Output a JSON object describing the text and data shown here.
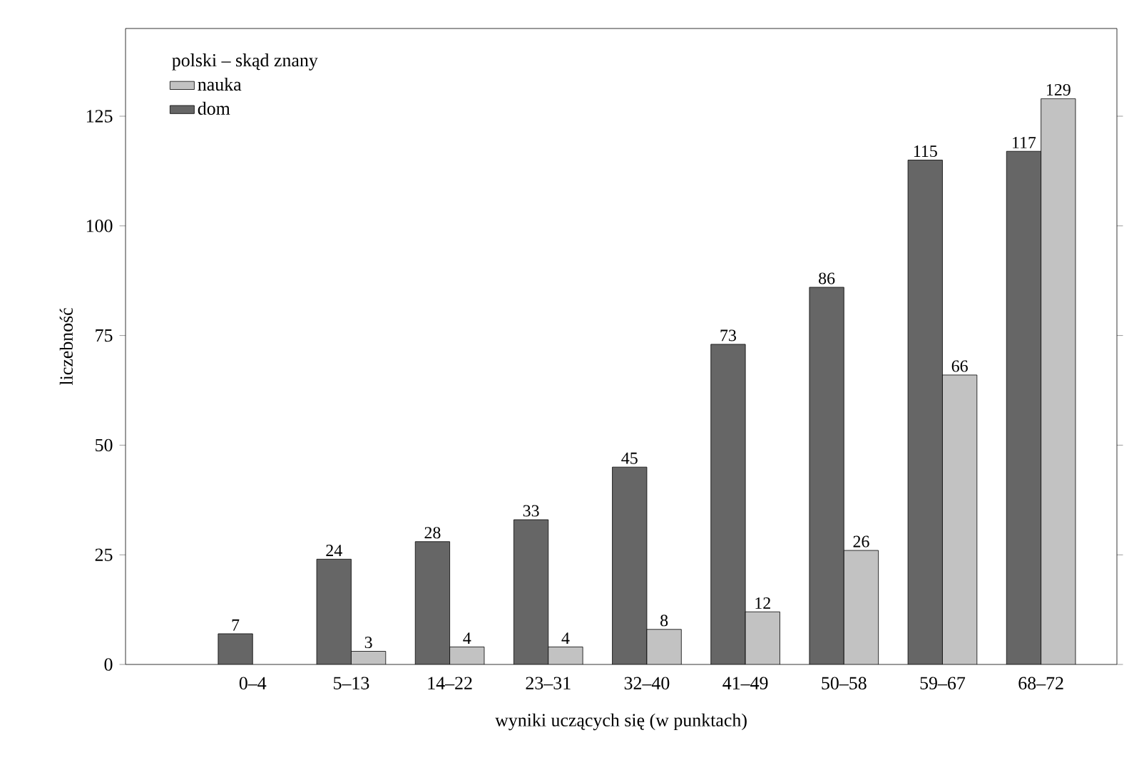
{
  "chart_data": {
    "type": "bar",
    "xlabel": "wyniki uczących się (w punktach)",
    "ylabel": "liczebność",
    "legend_title": "polski – skąd znany",
    "categories": [
      "0–4",
      "5–13",
      "14–22",
      "23–31",
      "32–40",
      "41–49",
      "50–58",
      "59–67",
      "68–72"
    ],
    "series": [
      {
        "name": "dom",
        "color": "#666666",
        "values": [
          7,
          24,
          28,
          33,
          45,
          73,
          86,
          115,
          117
        ]
      },
      {
        "name": "nauka",
        "color": "#c2c2c2",
        "values": [
          null,
          3,
          4,
          4,
          8,
          12,
          26,
          66,
          129
        ]
      }
    ],
    "ylim": [
      0,
      145
    ],
    "yticks": [
      0,
      25,
      50,
      75,
      100,
      125
    ],
    "data_labels": true,
    "legend": "top left",
    "grid": false
  }
}
